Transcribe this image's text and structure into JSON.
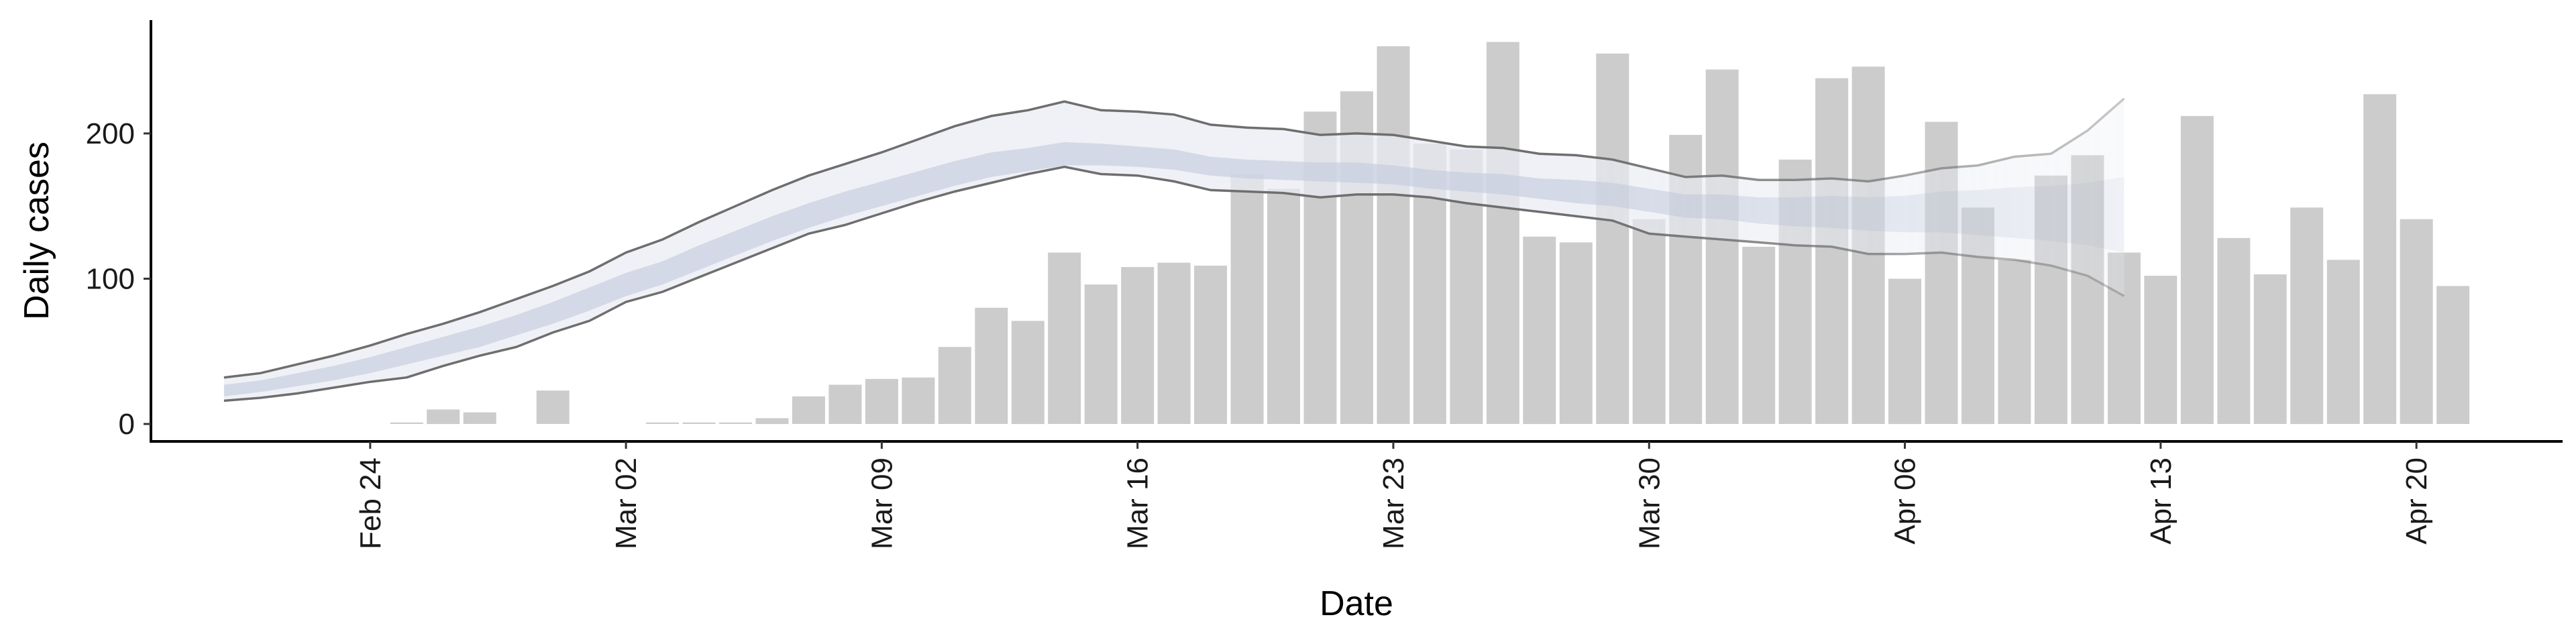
{
  "chart_data": {
    "type": "bar",
    "xlabel": "Date",
    "ylabel": "Daily cases",
    "ylim": [
      -12,
      278
    ],
    "yticks": [
      0,
      100,
      200
    ],
    "xticks": [
      {
        "date": "2020-02-24",
        "label": "Feb 24"
      },
      {
        "date": "2020-03-02",
        "label": "Mar 02"
      },
      {
        "date": "2020-03-09",
        "label": "Mar 09"
      },
      {
        "date": "2020-03-16",
        "label": "Mar 16"
      },
      {
        "date": "2020-03-23",
        "label": "Mar 23"
      },
      {
        "date": "2020-03-30",
        "label": "Mar 30"
      },
      {
        "date": "2020-04-06",
        "label": "Apr 06"
      },
      {
        "date": "2020-04-13",
        "label": "Apr 13"
      },
      {
        "date": "2020-04-20",
        "label": "Apr 20"
      }
    ],
    "xlim": [
      "2020-02-18",
      "2020-04-24"
    ],
    "grid": false,
    "colors": {
      "bars": "#cccccc",
      "band_outer": "#e9ebf3",
      "band_inner": "#c2c9dc",
      "band_edge": "#6e6e6e"
    },
    "observed_cases": {
      "dates": [
        "2020-02-25",
        "2020-02-26",
        "2020-02-27",
        "2020-02-29",
        "2020-03-03",
        "2020-03-04",
        "2020-03-05",
        "2020-03-06",
        "2020-03-07",
        "2020-03-08",
        "2020-03-09",
        "2020-03-10",
        "2020-03-11",
        "2020-03-12",
        "2020-03-13",
        "2020-03-14",
        "2020-03-15",
        "2020-03-16",
        "2020-03-17",
        "2020-03-18",
        "2020-03-19",
        "2020-03-20",
        "2020-03-21",
        "2020-03-22",
        "2020-03-23",
        "2020-03-24",
        "2020-03-25",
        "2020-03-26",
        "2020-03-27",
        "2020-03-28",
        "2020-03-29",
        "2020-03-30",
        "2020-03-31",
        "2020-04-01",
        "2020-04-02",
        "2020-04-03",
        "2020-04-04",
        "2020-04-05",
        "2020-04-06",
        "2020-04-07",
        "2020-04-08",
        "2020-04-09",
        "2020-04-10",
        "2020-04-11",
        "2020-04-12",
        "2020-04-13",
        "2020-04-14",
        "2020-04-15",
        "2020-04-16",
        "2020-04-17",
        "2020-04-18",
        "2020-04-19",
        "2020-04-20",
        "2020-04-21"
      ],
      "values": [
        1,
        10,
        8,
        23,
        1,
        1,
        1,
        4,
        19,
        27,
        31,
        32,
        53,
        80,
        71,
        118,
        96,
        108,
        111,
        109,
        172,
        162,
        215,
        229,
        260,
        193,
        189,
        263,
        129,
        125,
        255,
        141,
        199,
        244,
        122,
        182,
        238,
        246,
        100,
        208,
        149,
        113,
        171,
        185,
        118,
        102,
        212,
        128,
        103,
        149,
        113,
        227,
        141,
        95
      ]
    },
    "estimate": {
      "dates": [
        "2020-02-20",
        "2020-02-21",
        "2020-02-22",
        "2020-02-23",
        "2020-02-24",
        "2020-02-25",
        "2020-02-26",
        "2020-02-27",
        "2020-02-28",
        "2020-02-29",
        "2020-03-01",
        "2020-03-02",
        "2020-03-03",
        "2020-03-04",
        "2020-03-05",
        "2020-03-06",
        "2020-03-07",
        "2020-03-08",
        "2020-03-09",
        "2020-03-10",
        "2020-03-11",
        "2020-03-12",
        "2020-03-13",
        "2020-03-14",
        "2020-03-15",
        "2020-03-16",
        "2020-03-17",
        "2020-03-18",
        "2020-03-19",
        "2020-03-20",
        "2020-03-21",
        "2020-03-22",
        "2020-03-23",
        "2020-03-24",
        "2020-03-25",
        "2020-03-26",
        "2020-03-27",
        "2020-03-28",
        "2020-03-29",
        "2020-03-30",
        "2020-03-31",
        "2020-04-01",
        "2020-04-02",
        "2020-04-03",
        "2020-04-04",
        "2020-04-05",
        "2020-04-06",
        "2020-04-07",
        "2020-04-08",
        "2020-04-09",
        "2020-04-10",
        "2020-04-11",
        "2020-04-12"
      ],
      "upper90": [
        32,
        35,
        41,
        47,
        54,
        62,
        69,
        77,
        86,
        95,
        105,
        118,
        127,
        139,
        150,
        161,
        171,
        179,
        187,
        196,
        205,
        212,
        216,
        222,
        216,
        215,
        213,
        206,
        204,
        203,
        199,
        200,
        199,
        195,
        191,
        190,
        186,
        185,
        182,
        176,
        170,
        171,
        168,
        168,
        169,
        167,
        171,
        176,
        178,
        184,
        186,
        202,
        224
      ],
      "upper50": [
        27,
        30,
        35,
        40,
        46,
        53,
        60,
        67,
        75,
        84,
        94,
        104,
        112,
        123,
        133,
        143,
        152,
        160,
        167,
        174,
        181,
        187,
        190,
        194,
        193,
        191,
        189,
        184,
        182,
        181,
        180,
        180,
        178,
        175,
        173,
        172,
        169,
        168,
        166,
        162,
        158,
        158,
        156,
        156,
        157,
        156,
        157,
        160,
        161,
        163,
        164,
        166,
        170
      ],
      "median": [
        23,
        26,
        30,
        35,
        41,
        47,
        54,
        60,
        68,
        76,
        86,
        96,
        104,
        115,
        125,
        135,
        144,
        152,
        159,
        166,
        173,
        179,
        182,
        186,
        186,
        184,
        182,
        178,
        176,
        175,
        174,
        174,
        172,
        169,
        167,
        165,
        162,
        160,
        158,
        154,
        150,
        150,
        147,
        146,
        146,
        145,
        145,
        146,
        146,
        145,
        144,
        143,
        143
      ],
      "lower50": [
        19,
        22,
        26,
        30,
        35,
        41,
        47,
        53,
        61,
        69,
        78,
        88,
        96,
        106,
        116,
        126,
        135,
        143,
        150,
        157,
        164,
        170,
        174,
        178,
        178,
        177,
        175,
        171,
        169,
        168,
        167,
        166,
        165,
        162,
        160,
        158,
        155,
        152,
        150,
        146,
        142,
        141,
        138,
        136,
        135,
        133,
        132,
        132,
        130,
        128,
        126,
        123,
        118
      ],
      "lower90": [
        16,
        18,
        21,
        25,
        29,
        32,
        40,
        47,
        53,
        63,
        71,
        84,
        91,
        101,
        111,
        121,
        131,
        137,
        145,
        153,
        160,
        166,
        172,
        177,
        172,
        171,
        167,
        161,
        160,
        159,
        156,
        158,
        158,
        156,
        152,
        149,
        146,
        143,
        140,
        131,
        129,
        127,
        125,
        123,
        122,
        117,
        117,
        118,
        115,
        113,
        109,
        102,
        88
      ]
    }
  }
}
